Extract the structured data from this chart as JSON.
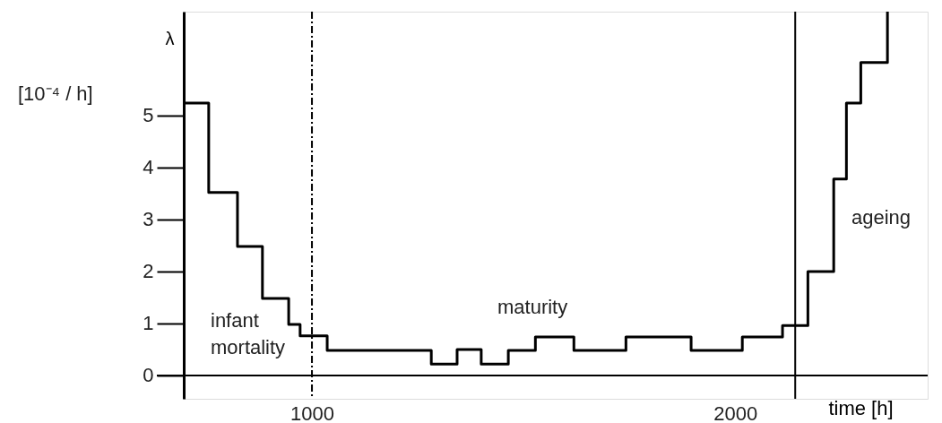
{
  "chart_data": {
    "type": "step",
    "xlabel": "time [h]",
    "ylabel": "λ",
    "x": [
      697,
      756,
      824,
      883,
      945,
      972,
      1036,
      1282,
      1343,
      1400,
      1464,
      1528,
      1619,
      1742,
      1896,
      2017,
      2112,
      2172,
      2233,
      2263,
      2297,
      2360
    ],
    "series": [
      {
        "color": "#000000",
        "values": [
          5.24,
          3.52,
          2.48,
          1.48,
          0.98,
          0.76,
          0.48,
          0.22,
          0.5,
          0.22,
          0.48,
          0.74,
          0.48,
          0.74,
          0.48,
          0.74,
          0.96,
          2.0,
          3.78,
          5.24,
          6.02,
          7.0
        ]
      }
    ],
    "xlim": [
      697,
      2455
    ],
    "ylim": [
      -0.45,
      7
    ],
    "xticks": [
      1000,
      2000
    ],
    "yticks": [
      0,
      1,
      2,
      3,
      4,
      5
    ],
    "grid": false,
    "ref_lines": [
      {
        "axis": "x",
        "value": 1000,
        "line_style": "dashdot",
        "color": "#000000"
      },
      {
        "axis": "x",
        "value": 2142,
        "line_style": "solid",
        "color": "#000000"
      }
    ],
    "annotations": [
      "[10⁻⁴ / h]",
      "infant\nmortality",
      "maturity",
      "ageing"
    ]
  }
}
